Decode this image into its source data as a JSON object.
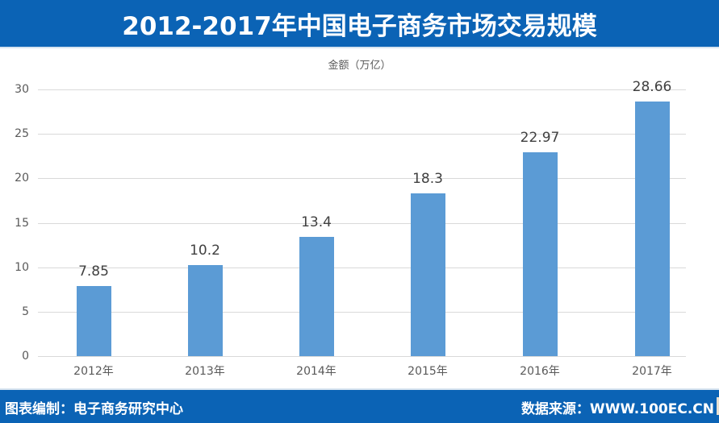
{
  "header": {
    "title": "2012-2017年中国电子商务市场交易规模"
  },
  "chart_data": {
    "type": "bar",
    "title": "2012-2017年中国电子商务市场交易规模",
    "ylabel": "金额（万亿）",
    "xlabel": "",
    "categories": [
      "2012年",
      "2013年",
      "2014年",
      "2015年",
      "2016年",
      "2017年"
    ],
    "values": [
      7.85,
      10.2,
      13.4,
      18.3,
      22.97,
      28.66
    ],
    "value_labels": [
      "7.85",
      "10.2",
      "13.4",
      "18.3",
      "22.97",
      "28.66"
    ],
    "ylim": [
      0,
      30
    ],
    "yticks": [
      "0",
      "5",
      "10",
      "15",
      "20",
      "25",
      "30"
    ],
    "grid": true,
    "legend": "none",
    "bar_color": "#5b9bd5"
  },
  "footer": {
    "left": "图表编制：电子商务研究中心",
    "right": "数据来源：WWW.100EC.CN"
  },
  "colors": {
    "header_bg": "#0b63b5",
    "bar": "#5b9bd5",
    "grid": "#d9d9d9"
  }
}
